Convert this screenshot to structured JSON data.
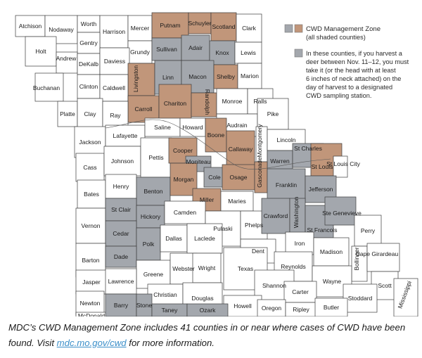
{
  "colors": {
    "gray": "#a3a7ad",
    "brown": "#c1967a",
    "white": "#ffffff",
    "border": "#3c3c3c",
    "link": "#3b8fc9"
  },
  "legend": {
    "title": "CWD Management Zone",
    "subtitle": "(all shaded counties)",
    "gray_note_lines": [
      "In these counties, if you harvest a",
      "deer between Nov. 11–12, you must",
      "take it (or the head with at least",
      "6 inches of neck attached) on the",
      "day of harvest to a designated",
      "CWD sampling station."
    ]
  },
  "counties": [
    {
      "name": "Atchison",
      "fill": "white"
    },
    {
      "name": "Nodaway",
      "fill": "white"
    },
    {
      "name": "Worth",
      "fill": "white"
    },
    {
      "name": "Harrison",
      "fill": "white"
    },
    {
      "name": "Mercer",
      "fill": "white"
    },
    {
      "name": "Putnam",
      "fill": "brown"
    },
    {
      "name": "Schuyler",
      "fill": "brown"
    },
    {
      "name": "Scotland",
      "fill": "brown"
    },
    {
      "name": "Clark",
      "fill": "white"
    },
    {
      "name": "Holt",
      "fill": "white"
    },
    {
      "name": "Gentry",
      "fill": "white"
    },
    {
      "name": "Grundy",
      "fill": "white"
    },
    {
      "name": "Sullivan",
      "fill": "gray"
    },
    {
      "name": "Adair",
      "fill": "gray"
    },
    {
      "name": "Knox",
      "fill": "gray"
    },
    {
      "name": "Lewis",
      "fill": "white"
    },
    {
      "name": "Andrew",
      "fill": "white"
    },
    {
      "name": "DeKalb",
      "fill": "white"
    },
    {
      "name": "Daviess",
      "fill": "white"
    },
    {
      "name": "Livingston",
      "fill": "brown"
    },
    {
      "name": "Linn",
      "fill": "gray"
    },
    {
      "name": "Macon",
      "fill": "gray"
    },
    {
      "name": "Shelby",
      "fill": "brown"
    },
    {
      "name": "Marion",
      "fill": "white"
    },
    {
      "name": "Buchanan",
      "fill": "white"
    },
    {
      "name": "Clinton",
      "fill": "white"
    },
    {
      "name": "Caldwell",
      "fill": "white"
    },
    {
      "name": "Carroll",
      "fill": "brown"
    },
    {
      "name": "Chariton",
      "fill": "brown"
    },
    {
      "name": "Randolph",
      "fill": "brown"
    },
    {
      "name": "Monroe",
      "fill": "white"
    },
    {
      "name": "Ralls",
      "fill": "white"
    },
    {
      "name": "Platte",
      "fill": "white"
    },
    {
      "name": "Clay",
      "fill": "white"
    },
    {
      "name": "Ray",
      "fill": "white"
    },
    {
      "name": "Audrain",
      "fill": "white"
    },
    {
      "name": "Pike",
      "fill": "white"
    },
    {
      "name": "Jackson",
      "fill": "white"
    },
    {
      "name": "Lafayette",
      "fill": "white"
    },
    {
      "name": "Saline",
      "fill": "white"
    },
    {
      "name": "Howard",
      "fill": "white"
    },
    {
      "name": "Boone",
      "fill": "brown"
    },
    {
      "name": "Montgomery",
      "fill": "white"
    },
    {
      "name": "Lincoln",
      "fill": "white"
    },
    {
      "name": "Cass",
      "fill": "white"
    },
    {
      "name": "Johnson",
      "fill": "white"
    },
    {
      "name": "Pettis",
      "fill": "white"
    },
    {
      "name": "Cooper",
      "fill": "brown"
    },
    {
      "name": "Moniteau",
      "fill": "gray"
    },
    {
      "name": "Callaway",
      "fill": "brown"
    },
    {
      "name": "Warren",
      "fill": "gray"
    },
    {
      "name": "St Charles",
      "fill": "gray"
    },
    {
      "name": "St Louis",
      "fill": "brown"
    },
    {
      "name": "St Louis City",
      "fill": "white"
    },
    {
      "name": "Cole",
      "fill": "gray"
    },
    {
      "name": "Osage",
      "fill": "brown"
    },
    {
      "name": "Gasconade",
      "fill": "brown"
    },
    {
      "name": "Franklin",
      "fill": "gray"
    },
    {
      "name": "Bates",
      "fill": "white"
    },
    {
      "name": "Henry",
      "fill": "white"
    },
    {
      "name": "Benton",
      "fill": "gray"
    },
    {
      "name": "Morgan",
      "fill": "brown"
    },
    {
      "name": "Miller",
      "fill": "brown"
    },
    {
      "name": "Maries",
      "fill": "white"
    },
    {
      "name": "Jefferson",
      "fill": "gray"
    },
    {
      "name": "Vernon",
      "fill": "white"
    },
    {
      "name": "St Clair",
      "fill": "gray"
    },
    {
      "name": "Hickory",
      "fill": "gray"
    },
    {
      "name": "Camden",
      "fill": "white"
    },
    {
      "name": "Pulaski",
      "fill": "white"
    },
    {
      "name": "Phelps",
      "fill": "white"
    },
    {
      "name": "Crawford",
      "fill": "gray"
    },
    {
      "name": "Washington",
      "fill": "gray"
    },
    {
      "name": "St Francois",
      "fill": "gray"
    },
    {
      "name": "Ste Genevieve",
      "fill": "gray"
    },
    {
      "name": "Perry",
      "fill": "white"
    },
    {
      "name": "Cedar",
      "fill": "gray"
    },
    {
      "name": "Polk",
      "fill": "gray"
    },
    {
      "name": "Dallas",
      "fill": "white"
    },
    {
      "name": "Laclede",
      "fill": "white"
    },
    {
      "name": "Dent",
      "fill": "white"
    },
    {
      "name": "Iron",
      "fill": "white"
    },
    {
      "name": "Madison",
      "fill": "white"
    },
    {
      "name": "Bollinger",
      "fill": "white"
    },
    {
      "name": "Cape Girardeau",
      "fill": "white"
    },
    {
      "name": "Barton",
      "fill": "white"
    },
    {
      "name": "Dade",
      "fill": "gray"
    },
    {
      "name": "Greene",
      "fill": "white"
    },
    {
      "name": "Webster",
      "fill": "white"
    },
    {
      "name": "Wright",
      "fill": "white"
    },
    {
      "name": "Texas",
      "fill": "white"
    },
    {
      "name": "Reynolds",
      "fill": "white"
    },
    {
      "name": "Shannon",
      "fill": "white"
    },
    {
      "name": "Wayne",
      "fill": "white"
    },
    {
      "name": "Scott",
      "fill": "white"
    },
    {
      "name": "Jasper",
      "fill": "white"
    },
    {
      "name": "Lawrence",
      "fill": "white"
    },
    {
      "name": "Christian",
      "fill": "white"
    },
    {
      "name": "Douglas",
      "fill": "white"
    },
    {
      "name": "Carter",
      "fill": "white"
    },
    {
      "name": "Stoddard",
      "fill": "white"
    },
    {
      "name": "Mississippi",
      "fill": "white"
    },
    {
      "name": "Newton",
      "fill": "white"
    },
    {
      "name": "Howell",
      "fill": "white"
    },
    {
      "name": "Oregon",
      "fill": "white"
    },
    {
      "name": "Ripley",
      "fill": "white"
    },
    {
      "name": "Butler",
      "fill": "white"
    },
    {
      "name": "McDonald",
      "fill": "white"
    },
    {
      "name": "Barry",
      "fill": "gray"
    },
    {
      "name": "Stone",
      "fill": "gray"
    },
    {
      "name": "Taney",
      "fill": "gray"
    },
    {
      "name": "Ozark",
      "fill": "gray"
    }
  ],
  "caption": {
    "text_before": "MDC’s CWD Management Zone includes 41 counties in or near where cases of CWD have been found. Visit ",
    "link": "mdc.mo.gov/cwd",
    "text_after": " for more information."
  }
}
